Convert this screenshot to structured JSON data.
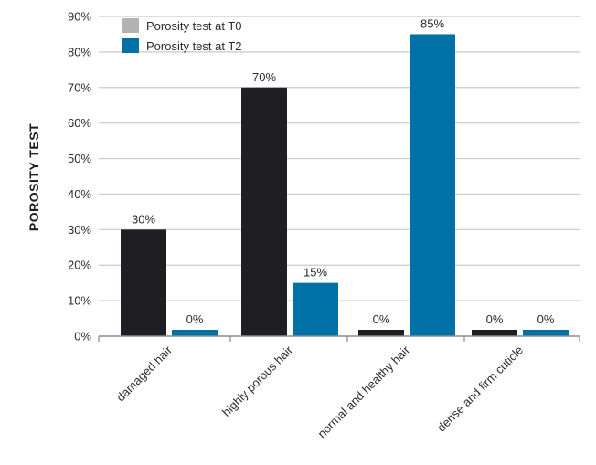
{
  "chart_data": {
    "type": "bar",
    "title": "",
    "xlabel": "",
    "ylabel": "POROSITY TEST",
    "ylim": [
      0,
      90
    ],
    "yticks": [
      0,
      10,
      20,
      30,
      40,
      50,
      60,
      70,
      80,
      90
    ],
    "ytick_suffix": "%",
    "grid": true,
    "legend_position": "top-left",
    "categories": [
      "damaged hair",
      "highly porous hair",
      "normal and healthy hair",
      "dense and firm cuticle"
    ],
    "series": [
      {
        "name": "Porosity test at T0",
        "values": [
          30,
          70,
          0,
          0
        ],
        "labels": [
          "30%",
          "70%",
          "0%",
          "0%"
        ],
        "color": "#1f1e23",
        "legend_color": "#b3b3b3"
      },
      {
        "name": "Porosity test at T2",
        "values": [
          0,
          15,
          85,
          0
        ],
        "labels": [
          "0%",
          "15%",
          "85%",
          "0%"
        ],
        "color": "#0071a6",
        "legend_color": "#0071a6"
      }
    ],
    "colors": {
      "grid": "#c9c9c9",
      "axis": "#8a8a8a",
      "text": "#2b2b2b"
    }
  }
}
